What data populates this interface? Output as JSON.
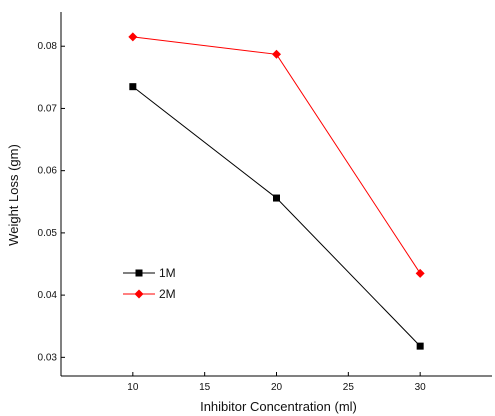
{
  "chart_data": {
    "type": "line",
    "title": "",
    "xlabel": "Inhibitor Concentration (ml)",
    "ylabel": "Weight Loss (gm)",
    "x": [
      10,
      20,
      30
    ],
    "xlim": [
      5,
      35
    ],
    "ylim": [
      0.027,
      0.0855
    ],
    "xticks": [
      10,
      15,
      20,
      25,
      30
    ],
    "yticks": [
      0.03,
      0.04,
      0.05,
      0.06,
      0.07,
      0.08
    ],
    "xtick_labels": [
      "10",
      "15",
      "20",
      "25",
      "30"
    ],
    "ytick_labels": [
      "0.03",
      "0.04",
      "0.05",
      "0.06",
      "0.07",
      "0.08"
    ],
    "grid": false,
    "legend_position": "bottom-left",
    "series": [
      {
        "name": "1M",
        "values": [
          0.0735,
          0.0556,
          0.0318
        ],
        "color": "#000000",
        "marker": "square"
      },
      {
        "name": "2M",
        "values": [
          0.0815,
          0.0787,
          0.0435
        ],
        "color": "#ff0000",
        "marker": "diamond"
      }
    ]
  }
}
